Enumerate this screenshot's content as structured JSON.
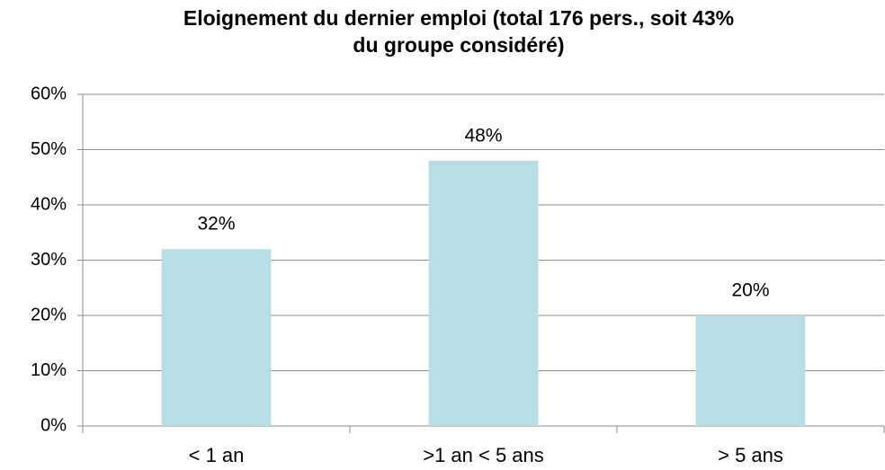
{
  "chart_data": {
    "type": "bar",
    "title": [
      "Eloignement du dernier emploi (total 176 pers., soit 43%",
      "du groupe considéré)"
    ],
    "categories": [
      "< 1 an",
      ">1 an < 5 ans",
      "> 5 ans"
    ],
    "values": [
      32,
      48,
      20
    ],
    "value_labels": [
      "32%",
      "48%",
      "20%"
    ],
    "color": "#b7dee4",
    "ylim": [
      0,
      60
    ],
    "yticks": [
      {
        "value": 0,
        "label": "0%"
      },
      {
        "value": 10,
        "label": "10%"
      },
      {
        "value": 20,
        "label": "20%"
      },
      {
        "value": 30,
        "label": "30%"
      },
      {
        "value": 40,
        "label": "40%"
      },
      {
        "value": 50,
        "label": "50%"
      },
      {
        "value": 60,
        "label": "60%"
      }
    ],
    "grid": true
  }
}
